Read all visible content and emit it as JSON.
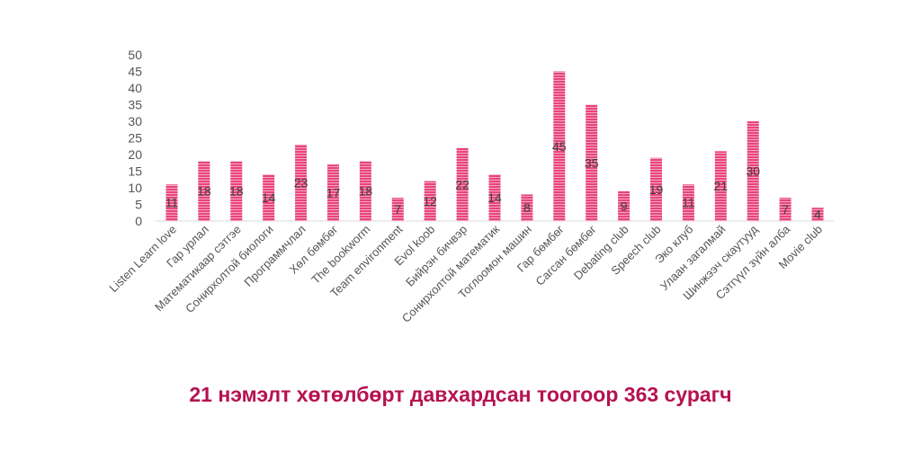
{
  "caption": "21 нэмэлт хөтөлбөрт давхардсан тоогоор 363 сурагч",
  "chart_data": {
    "type": "bar",
    "categories": [
      "Listen Learn love",
      "Гар урлал",
      "Математикаар сэтгэе",
      "Сонирхолтой биологи",
      "Программчлал",
      "Хөл бөмбөг",
      "The bookworm",
      "Team environment",
      "Evol koob",
      "Бийрэн бичвэр",
      "Сонирхолтой математик",
      "Тоглоомон машин",
      "Гар бөмбөг",
      "Сагсан бөмбөг",
      "Debating club",
      "Speech club",
      "Эко клуб",
      "Улаан загалмай",
      "Шинжээч скаутууд",
      "Сэтгүүл зүйн алба",
      "Movie club"
    ],
    "values": [
      11,
      18,
      18,
      14,
      23,
      17,
      18,
      7,
      12,
      22,
      14,
      8,
      45,
      35,
      9,
      19,
      11,
      21,
      30,
      7,
      4
    ],
    "ylim": [
      0,
      50
    ],
    "yticks": [
      0,
      5,
      10,
      15,
      20,
      25,
      30,
      35,
      40,
      45,
      50
    ],
    "grid": false,
    "bar_color": "#e8457a",
    "bar_stripe_color": "#f7a6c2",
    "caption_color": "#b5124f"
  }
}
